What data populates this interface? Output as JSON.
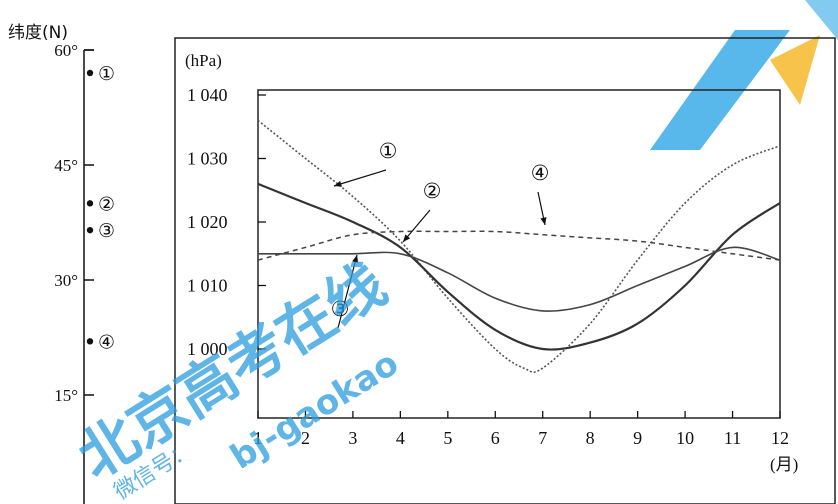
{
  "latitude_panel": {
    "title": "纬度(N)",
    "ticks": [
      "60°",
      "45°",
      "30°",
      "15°"
    ],
    "ticks_values": [
      60,
      45,
      30,
      15
    ],
    "points": [
      {
        "label": "①",
        "lat": 57
      },
      {
        "label": "②",
        "lat": 40
      },
      {
        "label": "③",
        "lat": 36.5
      },
      {
        "label": "④",
        "lat": 22
      }
    ]
  },
  "chart_data": {
    "type": "line",
    "ylabel": "(hPa)",
    "xlabel": "(月)",
    "ylim": [
      1000,
      1040
    ],
    "yticks": [
      1040,
      1030,
      1020,
      1010,
      1000
    ],
    "ytick_labels": [
      "1 040",
      "1 030",
      "1 020",
      "1 010",
      "1 000"
    ],
    "xticks": [
      1,
      2,
      3,
      4,
      5,
      6,
      7,
      8,
      9,
      10,
      11,
      12
    ],
    "xtick_labels": [
      "1",
      "2",
      "3",
      "4",
      "5",
      "6",
      "7",
      "8",
      "9",
      "10",
      "11",
      "12"
    ],
    "series": [
      {
        "name": "①",
        "style": "dotted",
        "x": [
          1,
          2,
          3,
          4,
          5,
          6,
          6.6,
          7,
          8,
          9,
          10,
          11,
          12
        ],
        "y": [
          1036,
          1030,
          1024,
          1017,
          1008,
          1000,
          997,
          997,
          1004,
          1014,
          1023,
          1029,
          1032
        ]
      },
      {
        "name": "②",
        "style": "solid-thick",
        "x": [
          1,
          2,
          3,
          4,
          5,
          6,
          7,
          8,
          9,
          10,
          11,
          12
        ],
        "y": [
          1026,
          1023,
          1020,
          1016,
          1009,
          1003,
          1000,
          1001,
          1004,
          1010,
          1018,
          1023
        ]
      },
      {
        "name": "③",
        "style": "solid",
        "x": [
          1,
          2,
          3,
          4,
          5,
          6,
          7,
          8,
          9,
          10,
          11,
          12
        ],
        "y": [
          1015,
          1015,
          1015,
          1015,
          1012,
          1008,
          1006,
          1007,
          1010,
          1013,
          1016,
          1014
        ]
      },
      {
        "name": "④",
        "style": "dashed",
        "x": [
          1,
          2,
          3,
          4,
          5,
          6,
          7,
          8,
          9,
          10,
          11,
          12
        ],
        "y": [
          1014,
          1016,
          1018,
          1018.5,
          1018.5,
          1018.5,
          1018,
          1017.5,
          1017,
          1016,
          1015,
          1014
        ]
      }
    ]
  },
  "watermark": {
    "chars": [
      "北",
      "京",
      "高",
      "考",
      "在",
      "线"
    ],
    "url": "bj-gaokao",
    "sub": "微信号："
  }
}
